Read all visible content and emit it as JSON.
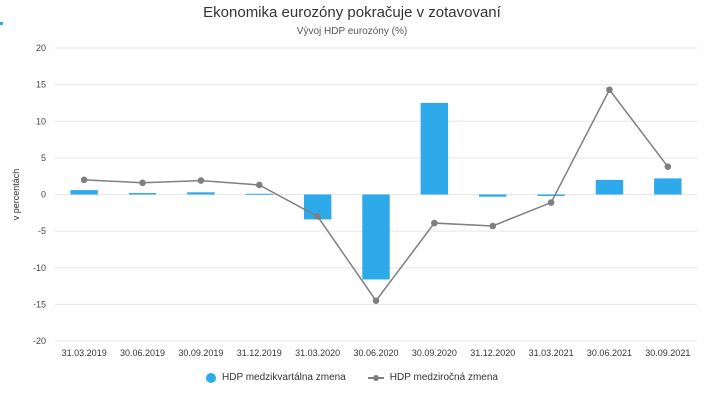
{
  "chart_data": {
    "type": "bar",
    "title": "Ekonomika eurozóny pokračuje v zotavovaní",
    "subtitle": "Vývoj HDP eurozóny (%)",
    "ylabel": "v percentách",
    "xlabel": "",
    "ylim": [
      -20,
      20
    ],
    "yticks": [
      20,
      15,
      10,
      5,
      0,
      -5,
      -10,
      -15,
      -20
    ],
    "categories": [
      "31.03.2019",
      "30.06.2019",
      "30.09.2019",
      "31.12.2019",
      "31.03.2020",
      "30.06.2020",
      "30.09.2020",
      "31.12.2020",
      "31.03.2021",
      "30.06.2021",
      "30.09.2021"
    ],
    "series": [
      {
        "name": "HDP medzikvartálna zmena",
        "type": "bar",
        "color": "#2eaaeb",
        "values": [
          0.6,
          0.2,
          0.3,
          0.1,
          -3.4,
          -11.6,
          12.5,
          -0.3,
          -0.2,
          2.0,
          2.2
        ]
      },
      {
        "name": "HDP medziročná zmena",
        "type": "line",
        "color": "#7f7f7f",
        "values": [
          2.0,
          1.6,
          1.9,
          1.3,
          -3.0,
          -14.5,
          -3.9,
          -4.3,
          -1.1,
          14.3,
          3.8
        ]
      }
    ],
    "grid": true,
    "legend": "bottom-center"
  },
  "colors": {
    "accent_mark": "#2eaaeb"
  }
}
